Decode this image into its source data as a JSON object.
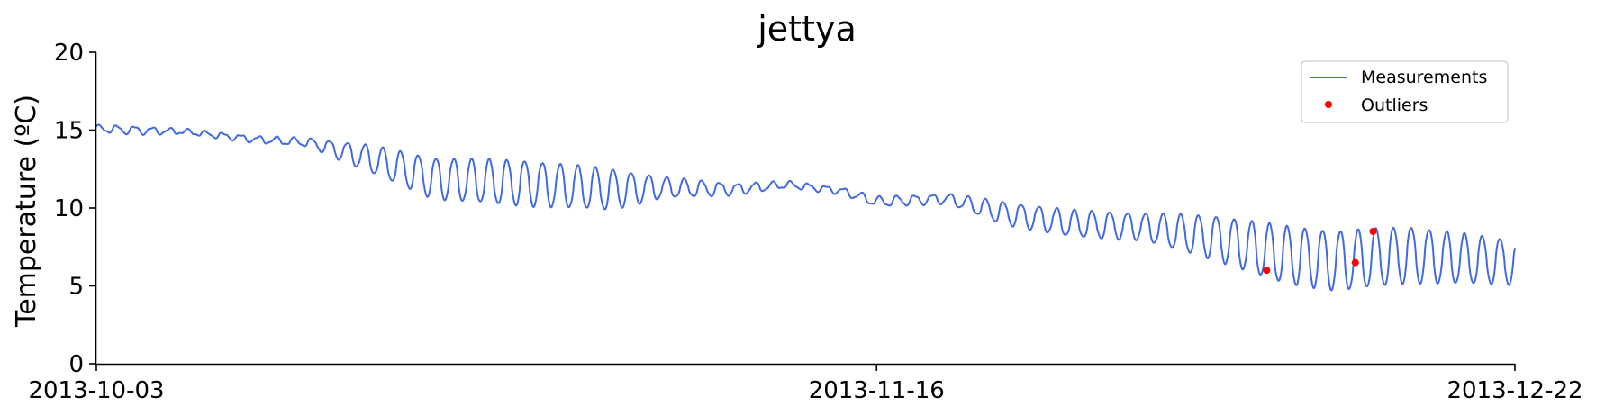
{
  "chart_data": {
    "type": "line",
    "title": "jettya",
    "xlabel": "",
    "ylabel": "Temperature (ºC)",
    "xlim": [
      "2013-10-03",
      "2013-12-22"
    ],
    "ylim": [
      0,
      20
    ],
    "x_ticks": [
      "2013-10-03",
      "2013-11-16",
      "2013-12-22"
    ],
    "y_ticks": [
      0,
      5,
      10,
      15,
      20
    ],
    "grid": false,
    "legend_position": "top-right",
    "colors": {
      "measurements": "#4169e1",
      "outliers": "#ff0000"
    },
    "series": [
      {
        "name": "Measurements",
        "type": "line",
        "color": "#4169e1",
        "trend": [
          [
            "2013-10-03",
            15.1,
            0.4
          ],
          [
            "2013-10-05",
            15.0,
            0.5
          ],
          [
            "2013-10-08",
            14.9,
            0.3
          ],
          [
            "2013-10-12",
            14.4,
            0.4
          ],
          [
            "2013-10-15",
            14.2,
            0.5
          ],
          [
            "2013-10-18",
            13.3,
            1.6
          ],
          [
            "2013-10-22",
            11.9,
            2.6
          ],
          [
            "2013-10-27",
            11.6,
            2.9
          ],
          [
            "2013-11-01",
            11.2,
            2.6
          ],
          [
            "2013-11-04",
            11.3,
            1.3
          ],
          [
            "2013-11-08",
            11.2,
            0.7
          ],
          [
            "2013-11-11",
            11.5,
            0.4
          ],
          [
            "2013-11-14",
            11.1,
            0.4
          ],
          [
            "2013-11-16",
            10.4,
            0.6
          ],
          [
            "2013-11-20",
            10.6,
            0.6
          ],
          [
            "2013-11-23",
            9.7,
            1.4
          ],
          [
            "2013-11-27",
            9.0,
            1.7
          ],
          [
            "2013-12-01",
            8.8,
            1.7
          ],
          [
            "2013-12-05",
            8.1,
            2.8
          ],
          [
            "2013-12-09",
            7.0,
            3.7
          ],
          [
            "2013-12-12",
            6.6,
            3.8
          ],
          [
            "2013-12-16",
            7.0,
            3.6
          ],
          [
            "2013-12-22",
            6.5,
            2.8
          ]
        ]
      },
      {
        "name": "Outliers",
        "type": "scatter",
        "color": "#ff0000",
        "points": [
          {
            "x": "2013-12-08",
            "y": 6.0
          },
          {
            "x": "2013-12-13",
            "y": 6.5
          },
          {
            "x": "2013-12-14",
            "y": 8.5
          }
        ]
      }
    ]
  }
}
